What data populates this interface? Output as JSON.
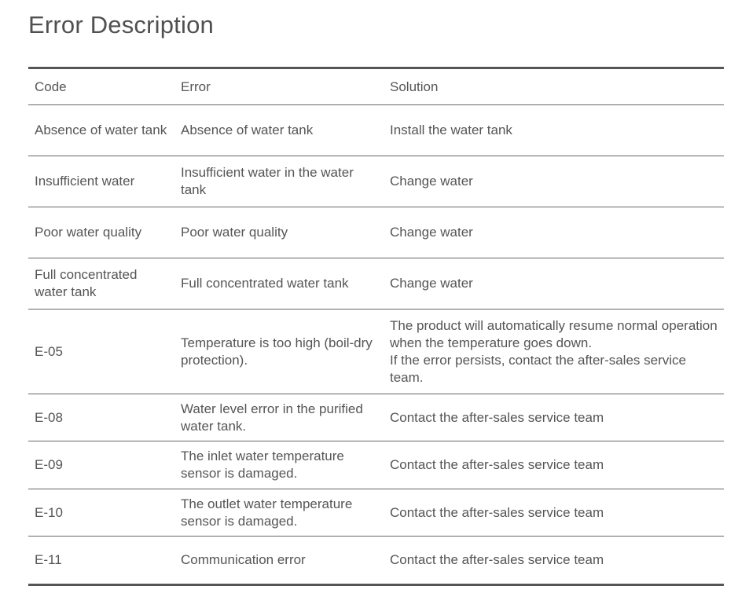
{
  "title": "Error Description",
  "table": {
    "headers": [
      "Code",
      "Error",
      "Solution"
    ],
    "rows": [
      {
        "code": "Absence of water tank",
        "error": "Absence of water tank",
        "solution": "Install the water tank"
      },
      {
        "code": "Insufficient water",
        "error": "Insufficient water in the water tank",
        "solution": "Change water"
      },
      {
        "code": "Poor water quality",
        "error": "Poor water quality",
        "solution": "Change water"
      },
      {
        "code": "Full concentrated water tank",
        "error": "Full concentrated water tank",
        "solution": "Change water"
      },
      {
        "code": "E-05",
        "error": "Temperature is too high (boil-dry protection).",
        "solution": "The product will automatically resume normal operation when the temperature goes down.\nIf the error persists, contact the after-sales service team."
      },
      {
        "code": "E-08",
        "error": "Water level error in the purified water tank.",
        "solution": "Contact the after-sales service team"
      },
      {
        "code": "E-09",
        "error": "The inlet water temperature sensor is damaged.",
        "solution": "Contact the after-sales service team"
      },
      {
        "code": "E-10",
        "error": "The outlet water temperature sensor is damaged.",
        "solution": "Contact the after-sales service team"
      },
      {
        "code": "E-11",
        "error": "Communication error",
        "solution": "Contact the after-sales service team"
      }
    ]
  }
}
